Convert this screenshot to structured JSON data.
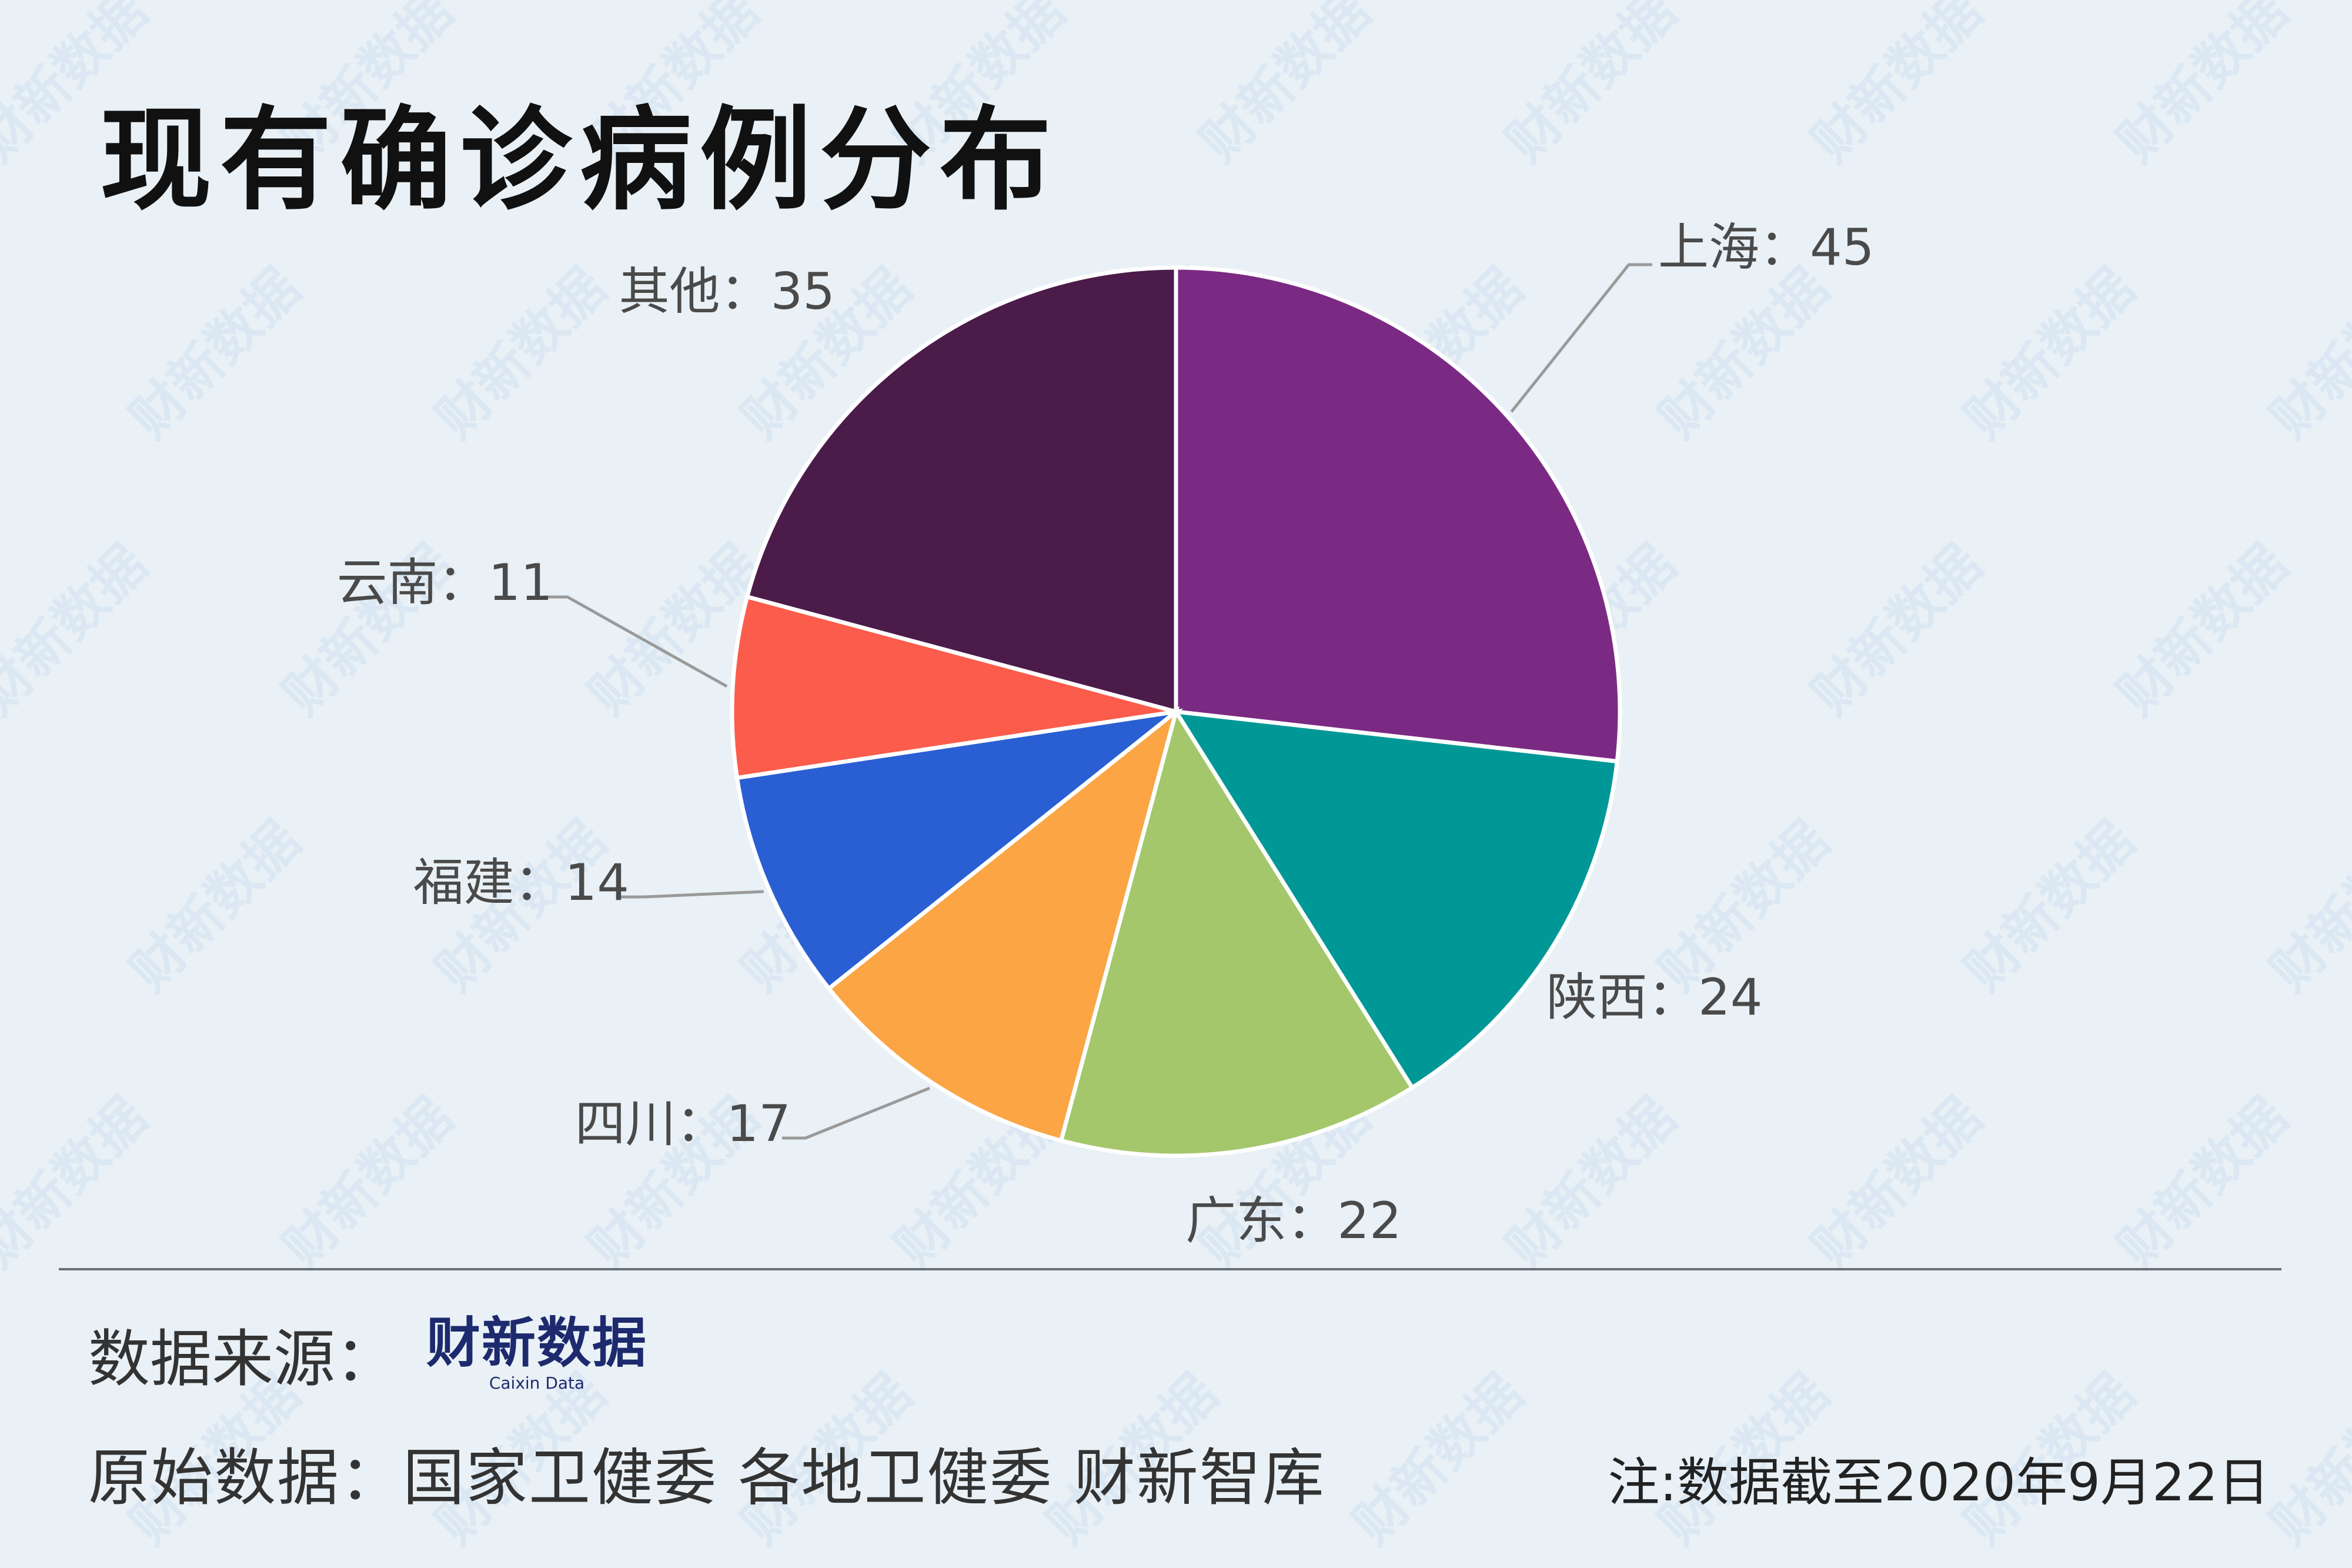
{
  "title": "现有确诊病例分布",
  "watermark_text": "财新数据",
  "chart_data": {
    "type": "pie",
    "title": "现有确诊病例分布",
    "start_angle_deg": 0,
    "direction": "clockwise",
    "slices": [
      {
        "name": "上海",
        "value": 45,
        "label": "上海：45",
        "color": "#7b2a83"
      },
      {
        "name": "陕西",
        "value": 24,
        "label": "陕西：24",
        "color": "#009896"
      },
      {
        "name": "广东",
        "value": 22,
        "label": "广东：22",
        "color": "#a4c76c"
      },
      {
        "name": "四川",
        "value": 17,
        "label": "四川：17",
        "color": "#fba545"
      },
      {
        "name": "福建",
        "value": 14,
        "label": "福建：14",
        "color": "#2a5fd4"
      },
      {
        "name": "云南",
        "value": 11,
        "label": "云南：11",
        "color": "#fb5c4b"
      },
      {
        "name": "其他",
        "value": 35,
        "label": "其他：35",
        "color": "#4b1b4a"
      }
    ]
  },
  "footer": {
    "source_label": "数据来源：",
    "logo_main": "财新数据",
    "logo_sub": "Caixin Data",
    "origin_text": "原始数据：国家卫健委 各地卫健委 财新智库",
    "note": "注:数据截至2020年9月22日"
  }
}
